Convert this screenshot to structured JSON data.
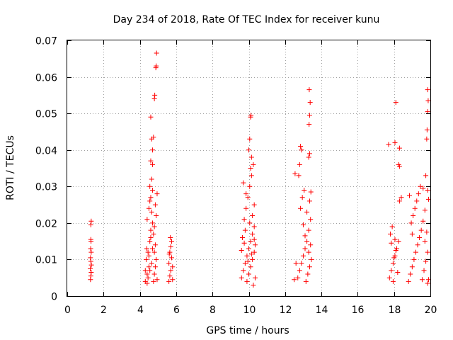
{
  "chart_data": {
    "type": "scatter",
    "title": "Day 234 of 2018, Rate Of TEC Index for receiver kunu",
    "xlabel": "GPS time / hours",
    "ylabel": "ROTI / TECUs",
    "xlim": [
      0,
      20
    ],
    "ylim": [
      0,
      0.07
    ],
    "xticks": [
      "0",
      "2",
      "4",
      "6",
      "8",
      "10",
      "12",
      "14",
      "16",
      "18",
      "20"
    ],
    "yticks": [
      "0",
      "0.01",
      "0.02",
      "0.03",
      "0.04",
      "0.05",
      "0.06",
      "0.07"
    ],
    "grid": true,
    "marker": "+",
    "color": "#ff0000",
    "series": [
      {
        "name": "ROTI",
        "points": [
          [
            1.28,
            0.0045
          ],
          [
            1.3,
            0.0055
          ],
          [
            1.32,
            0.0065
          ],
          [
            1.27,
            0.0075
          ],
          [
            1.33,
            0.0085
          ],
          [
            1.3,
            0.0095
          ],
          [
            1.28,
            0.0105
          ],
          [
            1.32,
            0.012
          ],
          [
            1.29,
            0.013
          ],
          [
            1.31,
            0.015
          ],
          [
            1.3,
            0.0155
          ],
          [
            1.3,
            0.0195
          ],
          [
            1.32,
            0.0205
          ],
          [
            4.3,
            0.004
          ],
          [
            4.4,
            0.006
          ],
          [
            4.5,
            0.008
          ],
          [
            4.35,
            0.01
          ],
          [
            4.45,
            0.012
          ],
          [
            4.55,
            0.015
          ],
          [
            4.6,
            0.018
          ],
          [
            4.4,
            0.021
          ],
          [
            4.5,
            0.024
          ],
          [
            4.6,
            0.027
          ],
          [
            4.45,
            0.005
          ],
          [
            4.55,
            0.007
          ],
          [
            4.65,
            0.009
          ],
          [
            4.5,
            0.011
          ],
          [
            4.7,
            0.013
          ],
          [
            4.6,
            0.016
          ],
          [
            4.7,
            0.02
          ],
          [
            4.65,
            0.023
          ],
          [
            4.55,
            0.026
          ],
          [
            4.7,
            0.029
          ],
          [
            4.75,
            0.004
          ],
          [
            4.8,
            0.006
          ],
          [
            4.85,
            0.008
          ],
          [
            4.9,
            0.01
          ],
          [
            4.8,
            0.012
          ],
          [
            4.85,
            0.014
          ],
          [
            4.75,
            0.017
          ],
          [
            4.8,
            0.019
          ],
          [
            4.9,
            0.022
          ],
          [
            4.85,
            0.025
          ],
          [
            4.55,
            0.03
          ],
          [
            4.65,
            0.032
          ],
          [
            4.7,
            0.036
          ],
          [
            4.6,
            0.037
          ],
          [
            4.7,
            0.04
          ],
          [
            4.65,
            0.043
          ],
          [
            4.75,
            0.0435
          ],
          [
            4.6,
            0.049
          ],
          [
            4.8,
            0.054
          ],
          [
            4.82,
            0.055
          ],
          [
            4.88,
            0.0625
          ],
          [
            4.9,
            0.063
          ],
          [
            4.92,
            0.0665
          ],
          [
            4.95,
            0.028
          ],
          [
            4.4,
            0.0035
          ],
          [
            4.3,
            0.007
          ],
          [
            4.38,
            0.013
          ],
          [
            4.95,
            0.0045
          ],
          [
            5.6,
            0.004
          ],
          [
            5.65,
            0.0055
          ],
          [
            5.7,
            0.007
          ],
          [
            5.6,
            0.009
          ],
          [
            5.75,
            0.0105
          ],
          [
            5.65,
            0.012
          ],
          [
            5.7,
            0.0135
          ],
          [
            5.75,
            0.015
          ],
          [
            5.68,
            0.016
          ],
          [
            5.8,
            0.0045
          ],
          [
            5.8,
            0.008
          ],
          [
            5.62,
            0.0115
          ],
          [
            9.6,
            0.005
          ],
          [
            9.7,
            0.007
          ],
          [
            9.8,
            0.009
          ],
          [
            9.9,
            0.011
          ],
          [
            10.0,
            0.013
          ],
          [
            10.1,
            0.015
          ],
          [
            10.2,
            0.017
          ],
          [
            10.3,
            0.019
          ],
          [
            9.75,
            0.021
          ],
          [
            9.85,
            0.024
          ],
          [
            9.95,
            0.027
          ],
          [
            10.05,
            0.03
          ],
          [
            10.15,
            0.033
          ],
          [
            10.25,
            0.036
          ],
          [
            9.9,
            0.004
          ],
          [
            10.0,
            0.006
          ],
          [
            10.1,
            0.008
          ],
          [
            10.2,
            0.01
          ],
          [
            10.3,
            0.012
          ],
          [
            10.35,
            0.014
          ],
          [
            9.65,
            0.016
          ],
          [
            9.8,
            0.018
          ],
          [
            10.05,
            0.02
          ],
          [
            10.2,
            0.022
          ],
          [
            10.3,
            0.025
          ],
          [
            9.7,
            0.031
          ],
          [
            9.85,
            0.028
          ],
          [
            10.1,
            0.035
          ],
          [
            10.15,
            0.038
          ],
          [
            10.0,
            0.04
          ],
          [
            10.05,
            0.043
          ],
          [
            10.1,
            0.049
          ],
          [
            10.12,
            0.0495
          ],
          [
            10.25,
            0.003
          ],
          [
            10.35,
            0.005
          ],
          [
            9.95,
            0.0095
          ],
          [
            10.15,
            0.0115
          ],
          [
            10.3,
            0.0155
          ],
          [
            9.6,
            0.0125
          ],
          [
            9.75,
            0.0145
          ],
          [
            12.5,
            0.0045
          ],
          [
            12.6,
            0.009
          ],
          [
            12.55,
            0.0335
          ],
          [
            12.7,
            0.005
          ],
          [
            12.8,
            0.007
          ],
          [
            12.9,
            0.009
          ],
          [
            13.0,
            0.011
          ],
          [
            13.1,
            0.013
          ],
          [
            13.2,
            0.015
          ],
          [
            13.3,
            0.018
          ],
          [
            13.4,
            0.021
          ],
          [
            12.85,
            0.024
          ],
          [
            12.95,
            0.027
          ],
          [
            13.05,
            0.029
          ],
          [
            12.75,
            0.033
          ],
          [
            12.8,
            0.036
          ],
          [
            12.9,
            0.04
          ],
          [
            12.85,
            0.041
          ],
          [
            13.15,
            0.004
          ],
          [
            13.25,
            0.006
          ],
          [
            13.35,
            0.008
          ],
          [
            13.45,
            0.01
          ],
          [
            13.3,
            0.012
          ],
          [
            13.4,
            0.014
          ],
          [
            13.2,
            0.023
          ],
          [
            13.35,
            0.026
          ],
          [
            13.3,
            0.038
          ],
          [
            13.35,
            0.039
          ],
          [
            13.32,
            0.047
          ],
          [
            13.35,
            0.0495
          ],
          [
            13.38,
            0.053
          ],
          [
            13.33,
            0.0565
          ],
          [
            13.42,
            0.0285
          ],
          [
            13.1,
            0.0165
          ],
          [
            13.0,
            0.0195
          ],
          [
            17.7,
            0.0415
          ],
          [
            17.75,
            0.005
          ],
          [
            17.85,
            0.007
          ],
          [
            17.95,
            0.009
          ],
          [
            18.05,
            0.011
          ],
          [
            18.15,
            0.013
          ],
          [
            18.25,
            0.015
          ],
          [
            17.8,
            0.017
          ],
          [
            17.9,
            0.019
          ],
          [
            18.0,
            0.0105
          ],
          [
            18.1,
            0.0125
          ],
          [
            18.2,
            0.0065
          ],
          [
            17.95,
            0.004
          ],
          [
            18.05,
            0.0155
          ],
          [
            18.1,
            0.053
          ],
          [
            18.05,
            0.042
          ],
          [
            18.3,
            0.0405
          ],
          [
            18.25,
            0.036
          ],
          [
            18.3,
            0.0355
          ],
          [
            18.4,
            0.027
          ],
          [
            18.3,
            0.026
          ],
          [
            17.85,
            0.0145
          ],
          [
            18.8,
            0.004
          ],
          [
            18.9,
            0.006
          ],
          [
            19.0,
            0.008
          ],
          [
            19.1,
            0.01
          ],
          [
            19.2,
            0.012
          ],
          [
            19.3,
            0.014
          ],
          [
            19.4,
            0.016
          ],
          [
            19.5,
            0.018
          ],
          [
            18.95,
            0.02
          ],
          [
            19.05,
            0.022
          ],
          [
            19.15,
            0.024
          ],
          [
            19.25,
            0.026
          ],
          [
            19.35,
            0.028
          ],
          [
            19.45,
            0.03
          ],
          [
            19.55,
            0.0045
          ],
          [
            19.65,
            0.007
          ],
          [
            19.75,
            0.0095
          ],
          [
            19.85,
            0.012
          ],
          [
            19.7,
            0.015
          ],
          [
            19.8,
            0.0175
          ],
          [
            19.6,
            0.0205
          ],
          [
            19.7,
            0.0235
          ],
          [
            19.9,
            0.0265
          ],
          [
            19.85,
            0.029
          ],
          [
            19.6,
            0.0295
          ],
          [
            19.75,
            0.033
          ],
          [
            19.85,
            0.0035
          ],
          [
            19.9,
            0.0045
          ],
          [
            19.8,
            0.043
          ],
          [
            19.82,
            0.0455
          ],
          [
            19.85,
            0.0505
          ],
          [
            19.88,
            0.0535
          ],
          [
            19.85,
            0.0565
          ],
          [
            18.85,
            0.0275
          ],
          [
            19.0,
            0.017
          ]
        ]
      }
    ]
  }
}
